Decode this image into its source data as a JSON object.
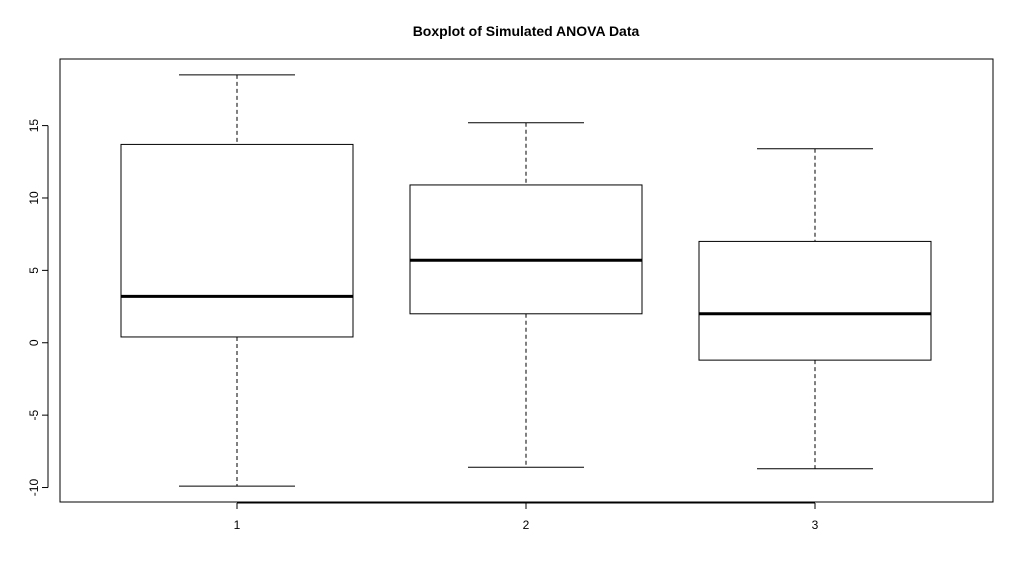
{
  "chart_data": {
    "type": "boxplot",
    "title": "Boxplot of Simulated ANOVA Data",
    "xlabel": "",
    "ylabel": "",
    "categories": [
      "1",
      "2",
      "3"
    ],
    "boxes": [
      {
        "name": "1",
        "whisker_low": -9.9,
        "q1": 0.4,
        "median": 3.2,
        "q3": 13.7,
        "whisker_high": 18.5
      },
      {
        "name": "2",
        "whisker_low": -8.6,
        "q1": 2.0,
        "median": 5.7,
        "q3": 10.9,
        "whisker_high": 15.2
      },
      {
        "name": "3",
        "whisker_low": -8.7,
        "q1": -1.2,
        "median": 2.0,
        "q3": 7.0,
        "whisker_high": 13.4
      }
    ],
    "ylim": [
      -11.0,
      19.6
    ],
    "yticks": [
      -10,
      -5,
      0,
      5,
      10,
      15
    ],
    "ytick_labels": [
      "-10",
      "-5",
      "0",
      "5",
      "10",
      "15"
    ],
    "grid": false,
    "legend": "none"
  }
}
